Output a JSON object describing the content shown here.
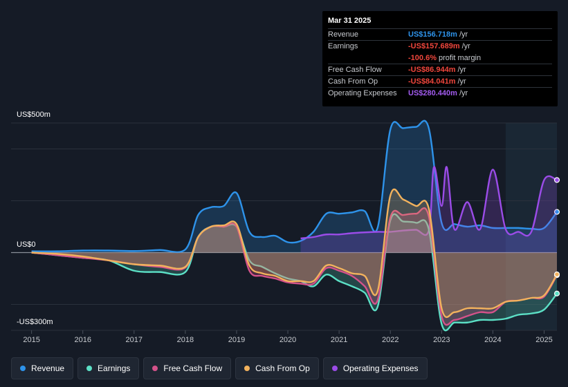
{
  "colors": {
    "revenue": "#2e93ea",
    "earnings": "#5ce0c6",
    "fcf": "#d4528a",
    "cfo": "#f2b25d",
    "opex": "#9b4ce8",
    "background": "#151b26"
  },
  "tooltip": {
    "date": "Mar 31 2025",
    "rows": [
      {
        "label": "Revenue",
        "value": "US$156.718m",
        "unit": "/yr",
        "color": "#2e93ea"
      },
      {
        "label": "Earnings",
        "value": "-US$157.689m",
        "unit": "/yr",
        "color": "#f0463c"
      },
      {
        "label": "",
        "value": "-100.6%",
        "unit": "profit margin",
        "color": "#f0463c"
      },
      {
        "label": "Free Cash Flow",
        "value": "-US$86.944m",
        "unit": "/yr",
        "color": "#f0463c"
      },
      {
        "label": "Cash From Op",
        "value": "-US$84.041m",
        "unit": "/yr",
        "color": "#f0463c"
      },
      {
        "label": "Operating Expenses",
        "value": "US$280.440m",
        "unit": "/yr",
        "color": "#a35cf0"
      }
    ]
  },
  "legend": [
    {
      "label": "Revenue",
      "color": "#2e93ea"
    },
    {
      "label": "Earnings",
      "color": "#5ce0c6"
    },
    {
      "label": "Free Cash Flow",
      "color": "#d4528a"
    },
    {
      "label": "Cash From Op",
      "color": "#f2b25d"
    },
    {
      "label": "Operating Expenses",
      "color": "#9b4ce8"
    }
  ],
  "chart_data": {
    "type": "line",
    "title": "",
    "ylabel": "",
    "ylim": [
      -300,
      500
    ],
    "ylim_labels": {
      "top": "US$500m",
      "zero": "US$0",
      "bottom": "-US$300m"
    },
    "xlim": [
      2014.6,
      2025.25
    ],
    "x_ticks": [
      {
        "v": 2015,
        "label": "2015"
      },
      {
        "v": 2016,
        "label": "2016"
      },
      {
        "v": 2017,
        "label": "2017"
      },
      {
        "v": 2018,
        "label": "2018"
      },
      {
        "v": 2019,
        "label": "2019"
      },
      {
        "v": 2020,
        "label": "2020"
      },
      {
        "v": 2021,
        "label": "2021"
      },
      {
        "v": 2022,
        "label": "2022"
      },
      {
        "v": 2023,
        "label": "2023"
      },
      {
        "v": 2024,
        "label": "2024"
      },
      {
        "v": 2025,
        "label": "2025"
      }
    ],
    "forecast_start": 2024.25,
    "series": [
      {
        "name": "Revenue",
        "key": "revenue",
        "fill": true,
        "points": [
          [
            2015,
            5
          ],
          [
            2015.5,
            5
          ],
          [
            2016,
            8
          ],
          [
            2016.5,
            8
          ],
          [
            2017,
            6
          ],
          [
            2017.5,
            10
          ],
          [
            2018,
            12
          ],
          [
            2018.25,
            145
          ],
          [
            2018.5,
            175
          ],
          [
            2018.75,
            180
          ],
          [
            2019,
            230
          ],
          [
            2019.25,
            80
          ],
          [
            2019.5,
            60
          ],
          [
            2019.75,
            65
          ],
          [
            2020,
            40
          ],
          [
            2020.25,
            45
          ],
          [
            2020.5,
            80
          ],
          [
            2020.75,
            150
          ],
          [
            2021,
            150
          ],
          [
            2021.25,
            155
          ],
          [
            2021.5,
            160
          ],
          [
            2021.75,
            95
          ],
          [
            2022,
            475
          ],
          [
            2022.25,
            480
          ],
          [
            2022.5,
            485
          ],
          [
            2022.75,
            480
          ],
          [
            2023,
            115
          ],
          [
            2023.25,
            110
          ],
          [
            2023.5,
            100
          ],
          [
            2023.75,
            105
          ],
          [
            2024,
            95
          ],
          [
            2024.25,
            95
          ],
          [
            2024.5,
            95
          ],
          [
            2024.75,
            92
          ],
          [
            2025,
            95
          ],
          [
            2025.25,
            157
          ]
        ]
      },
      {
        "name": "Earnings",
        "key": "earnings",
        "fill": true,
        "points": [
          [
            2015,
            0
          ],
          [
            2015.5,
            -10
          ],
          [
            2016,
            -20
          ],
          [
            2016.5,
            -30
          ],
          [
            2017,
            -70
          ],
          [
            2017.5,
            -75
          ],
          [
            2018,
            -75
          ],
          [
            2018.25,
            60
          ],
          [
            2018.5,
            100
          ],
          [
            2018.75,
            100
          ],
          [
            2019,
            100
          ],
          [
            2019.25,
            -30
          ],
          [
            2019.5,
            -55
          ],
          [
            2019.75,
            -80
          ],
          [
            2020,
            -100
          ],
          [
            2020.25,
            -110
          ],
          [
            2020.5,
            -130
          ],
          [
            2020.75,
            -85
          ],
          [
            2021,
            -110
          ],
          [
            2021.25,
            -130
          ],
          [
            2021.5,
            -155
          ],
          [
            2021.75,
            -210
          ],
          [
            2022,
            125
          ],
          [
            2022.25,
            120
          ],
          [
            2022.5,
            115
          ],
          [
            2022.75,
            90
          ],
          [
            2023,
            -275
          ],
          [
            2023.25,
            -270
          ],
          [
            2023.5,
            -270
          ],
          [
            2023.75,
            -260
          ],
          [
            2024,
            -260
          ],
          [
            2024.25,
            -255
          ],
          [
            2024.5,
            -240
          ],
          [
            2024.75,
            -235
          ],
          [
            2025,
            -220
          ],
          [
            2025.25,
            -158
          ]
        ]
      },
      {
        "name": "Free Cash Flow",
        "key": "fcf",
        "fill": true,
        "points": [
          [
            2015,
            0
          ],
          [
            2015.5,
            -10
          ],
          [
            2016,
            -20
          ],
          [
            2016.5,
            -30
          ],
          [
            2017,
            -45
          ],
          [
            2017.5,
            -55
          ],
          [
            2018,
            -58
          ],
          [
            2018.25,
            60
          ],
          [
            2018.5,
            100
          ],
          [
            2018.75,
            100
          ],
          [
            2019,
            100
          ],
          [
            2019.25,
            -70
          ],
          [
            2019.5,
            -90
          ],
          [
            2019.75,
            -100
          ],
          [
            2020,
            -115
          ],
          [
            2020.25,
            -120
          ],
          [
            2020.5,
            -120
          ],
          [
            2020.75,
            -60
          ],
          [
            2021,
            -70
          ],
          [
            2021.25,
            -90
          ],
          [
            2021.5,
            -130
          ],
          [
            2021.75,
            -185
          ],
          [
            2022,
            135
          ],
          [
            2022.25,
            145
          ],
          [
            2022.5,
            150
          ],
          [
            2022.75,
            140
          ],
          [
            2023,
            -245
          ],
          [
            2023.25,
            -260
          ],
          [
            2023.5,
            -245
          ],
          [
            2023.75,
            -230
          ],
          [
            2024,
            -230
          ],
          [
            2024.25,
            -190
          ],
          [
            2024.5,
            -185
          ],
          [
            2024.75,
            -175
          ],
          [
            2025,
            -170
          ],
          [
            2025.25,
            -87
          ]
        ]
      },
      {
        "name": "Cash From Op",
        "key": "cfo",
        "fill": true,
        "points": [
          [
            2015,
            0
          ],
          [
            2015.5,
            -5
          ],
          [
            2016,
            -15
          ],
          [
            2016.5,
            -30
          ],
          [
            2017,
            -45
          ],
          [
            2017.5,
            -50
          ],
          [
            2018,
            -55
          ],
          [
            2018.25,
            60
          ],
          [
            2018.5,
            100
          ],
          [
            2018.75,
            105
          ],
          [
            2019,
            110
          ],
          [
            2019.25,
            -50
          ],
          [
            2019.5,
            -80
          ],
          [
            2019.75,
            -90
          ],
          [
            2020,
            -110
          ],
          [
            2020.25,
            -110
          ],
          [
            2020.5,
            -110
          ],
          [
            2020.75,
            -50
          ],
          [
            2021,
            -60
          ],
          [
            2021.25,
            -80
          ],
          [
            2021.5,
            -90
          ],
          [
            2021.75,
            -150
          ],
          [
            2022,
            220
          ],
          [
            2022.25,
            205
          ],
          [
            2022.5,
            180
          ],
          [
            2022.75,
            170
          ],
          [
            2023,
            -215
          ],
          [
            2023.25,
            -230
          ],
          [
            2023.5,
            -215
          ],
          [
            2023.75,
            -215
          ],
          [
            2024,
            -215
          ],
          [
            2024.25,
            -190
          ],
          [
            2024.5,
            -185
          ],
          [
            2024.75,
            -175
          ],
          [
            2025,
            -165
          ],
          [
            2025.25,
            -84
          ]
        ]
      },
      {
        "name": "Operating Expenses",
        "key": "opex",
        "fill": true,
        "start": 2020.25,
        "points": [
          [
            2020.25,
            55
          ],
          [
            2020.5,
            60
          ],
          [
            2020.75,
            70
          ],
          [
            2021,
            70
          ],
          [
            2021.25,
            75
          ],
          [
            2021.5,
            78
          ],
          [
            2021.75,
            80
          ],
          [
            2022,
            80
          ],
          [
            2022.25,
            85
          ],
          [
            2022.5,
            88
          ],
          [
            2022.75,
            85
          ],
          [
            2022.85,
            330
          ],
          [
            2023,
            180
          ],
          [
            2023.1,
            330
          ],
          [
            2023.25,
            90
          ],
          [
            2023.5,
            195
          ],
          [
            2023.75,
            90
          ],
          [
            2024,
            320
          ],
          [
            2024.25,
            90
          ],
          [
            2024.5,
            80
          ],
          [
            2024.75,
            80
          ],
          [
            2025,
            280
          ],
          [
            2025.25,
            280
          ]
        ]
      }
    ]
  }
}
